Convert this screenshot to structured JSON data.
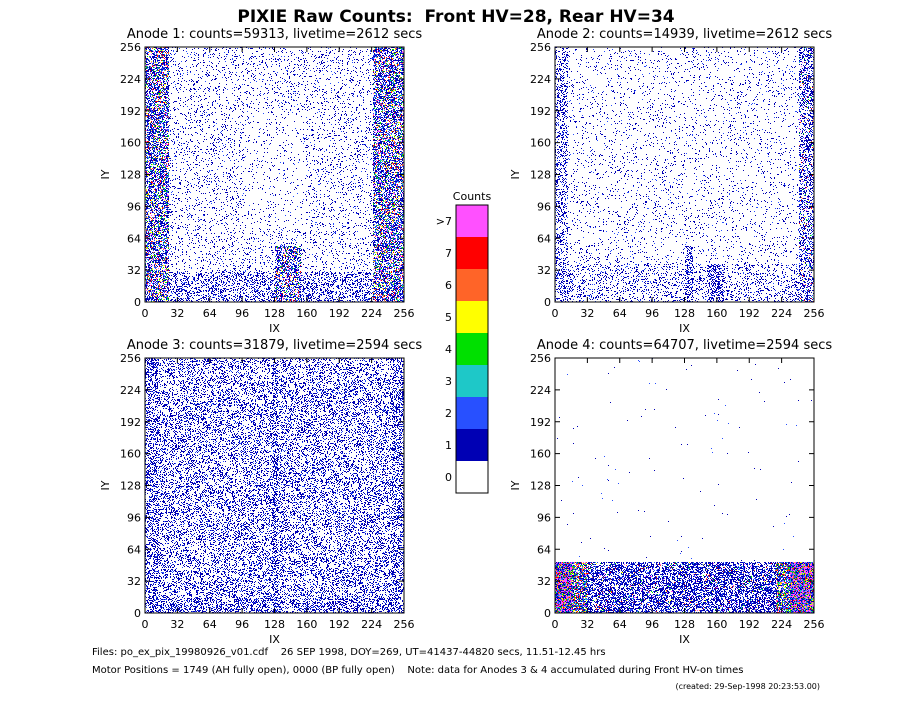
{
  "title": "PIXIE Raw Counts:  Front HV=28, Rear HV=34",
  "chart_data": [
    {
      "type": "heatmap",
      "title": "Anode 1: counts=59313, livetime=2612 secs",
      "x_label": "IX",
      "y_label": "IY",
      "xlim": [
        0,
        256
      ],
      "ylim": [
        0,
        256
      ],
      "xticks": [
        0,
        32,
        64,
        96,
        128,
        160,
        192,
        224,
        256
      ],
      "yticks": [
        0,
        32,
        64,
        96,
        128,
        160,
        192,
        224,
        256
      ]
    },
    {
      "type": "heatmap",
      "title": "Anode 2: counts=14939, livetime=2612 secs",
      "x_label": "IX",
      "y_label": "IY",
      "xlim": [
        0,
        256
      ],
      "ylim": [
        0,
        256
      ],
      "xticks": [
        0,
        32,
        64,
        96,
        128,
        160,
        192,
        224,
        256
      ],
      "yticks": [
        0,
        32,
        64,
        96,
        128,
        160,
        192,
        224,
        256
      ]
    },
    {
      "type": "heatmap",
      "title": "Anode 3: counts=31879, livetime=2594 secs",
      "x_label": "IX",
      "y_label": "IY",
      "xlim": [
        0,
        256
      ],
      "ylim": [
        0,
        256
      ],
      "xticks": [
        0,
        32,
        64,
        96,
        128,
        160,
        192,
        224,
        256
      ],
      "yticks": [
        0,
        32,
        64,
        96,
        128,
        160,
        192,
        224,
        256
      ]
    },
    {
      "type": "heatmap",
      "title": "Anode 4: counts=64707, livetime=2594 secs",
      "x_label": "IX",
      "y_label": "IY",
      "xlim": [
        0,
        256
      ],
      "ylim": [
        0,
        256
      ],
      "xticks": [
        0,
        32,
        64,
        96,
        128,
        160,
        192,
        224,
        256
      ],
      "yticks": [
        0,
        32,
        64,
        96,
        128,
        160,
        192,
        224,
        256
      ]
    }
  ],
  "colorbar": {
    "title": "Counts",
    "labels": [
      "0",
      "1",
      "2",
      "3",
      "4",
      "5",
      "6",
      "7",
      ">7"
    ],
    "colors": [
      "#ffffff",
      "#0000b4",
      "#2850ff",
      "#1ec8c8",
      "#00e000",
      "#ffff00",
      "#ff6428",
      "#ff0000",
      "#ff50ff"
    ]
  },
  "footer": {
    "files": "Files: po_ex_pix_19980926_v01.cdf    26 SEP 1998, DOY=269, UT=41437-44820 secs, 11.51-12.45 hrs",
    "motor": "Motor Positions = 1749 (AH fully open), 0000 (BP fully open)    Note: data for Anodes 3 & 4 accumulated during Front HV-on times",
    "created": "(created: 29-Sep-1998 20:23:53.00)"
  }
}
